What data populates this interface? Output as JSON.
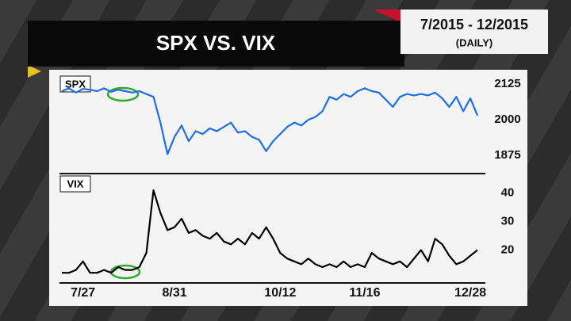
{
  "header": {
    "title": "SPX VS. VIX",
    "range": "7/2015 - 12/2015",
    "frequency": "(DAILY)"
  },
  "chart_data": [
    {
      "type": "line",
      "title": "SPX",
      "color": "#1e6ee6",
      "ylim": [
        1820,
        2150
      ],
      "yticks": [
        1875,
        2000,
        2125
      ],
      "values": [
        2100,
        2110,
        2095,
        2108,
        2105,
        2100,
        2110,
        2098,
        2105,
        2100,
        2095,
        2100,
        2090,
        2080,
        1990,
        1880,
        1940,
        1980,
        1925,
        1960,
        1950,
        1970,
        1960,
        1975,
        1990,
        1955,
        1960,
        1940,
        1930,
        1890,
        1925,
        1950,
        1975,
        1990,
        1980,
        2000,
        2010,
        2030,
        2080,
        2070,
        2090,
        2080,
        2100,
        2110,
        2100,
        2095,
        2070,
        2045,
        2080,
        2090,
        2085,
        2090,
        2085,
        2095,
        2075,
        2045,
        2080,
        2030,
        2075,
        2015
      ]
    },
    {
      "type": "line",
      "title": "VIX",
      "color": "#000000",
      "ylim": [
        9,
        46
      ],
      "yticks": [
        20,
        30,
        40
      ],
      "categories": [
        null,
        null,
        null,
        "7/27",
        null,
        null,
        null,
        null,
        null,
        null,
        null,
        null,
        null,
        null,
        null,
        null,
        "8/31",
        null,
        null,
        null,
        null,
        null,
        null,
        null,
        null,
        null,
        null,
        null,
        null,
        null,
        null,
        "10/12",
        null,
        null,
        null,
        null,
        null,
        null,
        null,
        null,
        null,
        null,
        null,
        "11/16",
        null,
        null,
        null,
        null,
        null,
        null,
        null,
        null,
        null,
        null,
        null,
        null,
        null,
        null,
        "12/28",
        null
      ],
      "values": [
        12,
        12,
        13,
        16,
        12,
        12,
        13,
        12,
        14,
        13,
        13,
        14,
        19,
        41,
        33,
        27,
        28,
        31,
        26,
        27,
        25,
        24,
        26,
        23,
        22,
        24,
        22,
        26,
        24,
        28,
        24,
        19,
        17,
        16,
        15,
        17,
        15,
        14,
        15,
        14,
        16,
        14,
        15,
        14,
        19,
        17,
        16,
        15,
        16,
        14,
        17,
        20,
        16,
        24,
        22,
        18,
        15,
        16,
        18,
        20
      ]
    }
  ]
}
